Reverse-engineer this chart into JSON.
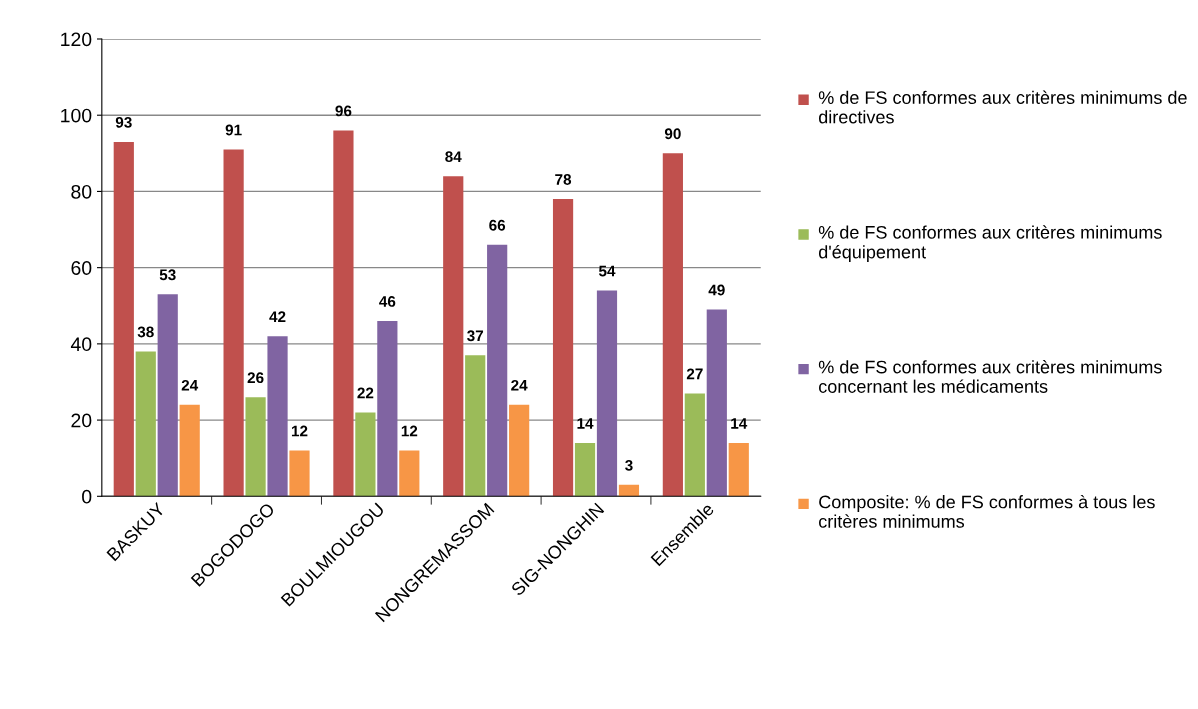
{
  "chart_data": {
    "type": "bar",
    "categories": [
      "BASKUY",
      "BOGODOGO",
      "BOULMIOUGOU",
      "NONGREMASSOM",
      "SIG-NONGHIN",
      "Ensemble"
    ],
    "series": [
      {
        "name": "% de FS conformes aux critères minimums de directives",
        "color": "#c0504d",
        "values": [
          93,
          91,
          96,
          84,
          78,
          90
        ]
      },
      {
        "name": "% de FS conformes aux critères minimums d'équipement",
        "color": "#9bbb59",
        "values": [
          38,
          26,
          22,
          37,
          14,
          27
        ]
      },
      {
        "name": "% de FS conformes aux critères minimums concernant les médicaments",
        "color": "#8064a2",
        "values": [
          53,
          42,
          46,
          66,
          54,
          49
        ]
      },
      {
        "name": "Composite: % de FS conformes à tous les critères minimums",
        "color": "#f79646",
        "values": [
          24,
          12,
          12,
          24,
          3,
          14
        ]
      }
    ],
    "ylim": [
      0,
      120
    ],
    "yticks": [
      0,
      20,
      40,
      60,
      80,
      100,
      120
    ],
    "grid": "y",
    "legend": "right",
    "data_labels": true
  }
}
